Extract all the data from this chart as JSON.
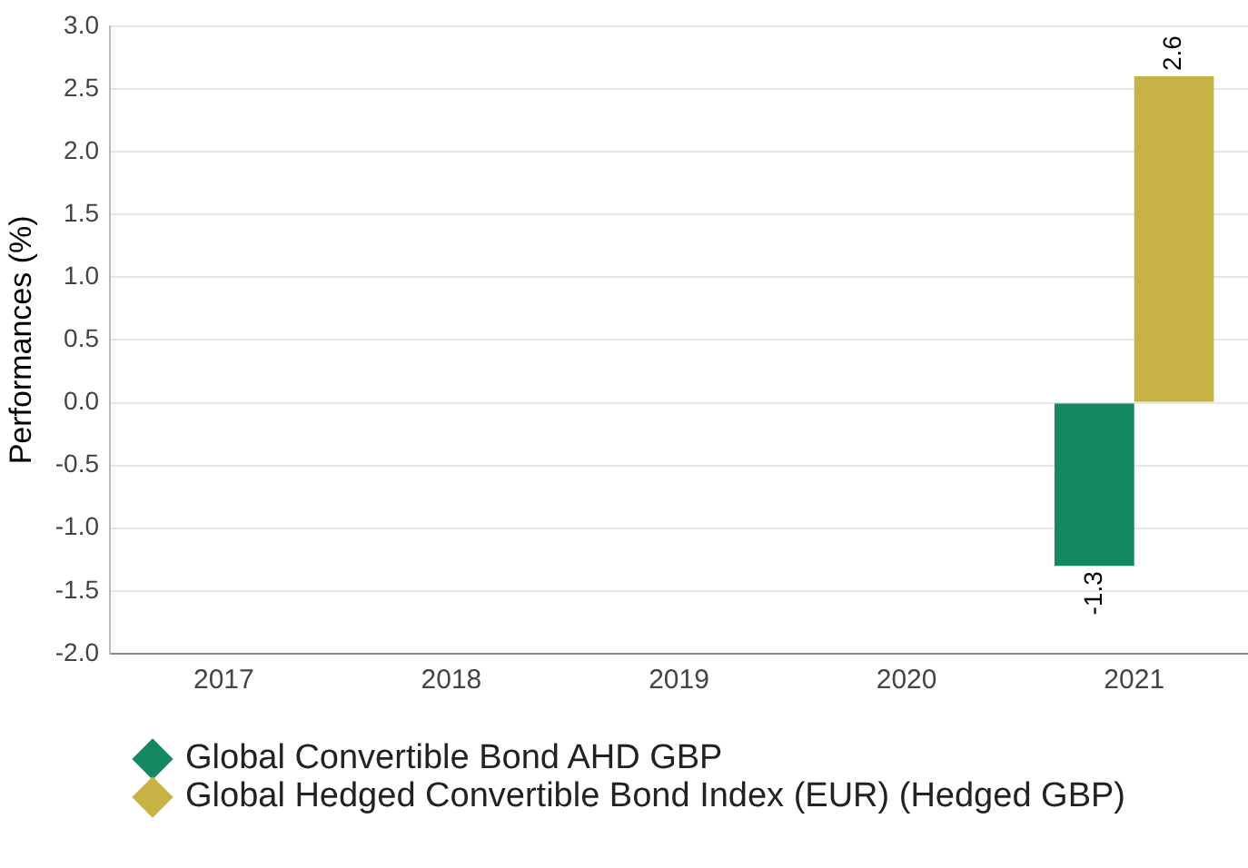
{
  "chart_data": {
    "type": "bar",
    "ylabel": "Performances (%)",
    "categories": [
      "2017",
      "2018",
      "2019",
      "2020",
      "2021"
    ],
    "series": [
      {
        "name": "Global Convertible Bond AHD GBP",
        "color": "#168763",
        "values": [
          null,
          null,
          null,
          null,
          -1.3
        ]
      },
      {
        "name": "Global Hedged Convertible Bond Index (EUR) (Hedged GBP)",
        "color": "#c7b246",
        "values": [
          null,
          null,
          null,
          null,
          2.6
        ]
      }
    ],
    "ylim": [
      -2.0,
      3.0
    ],
    "yticks": [
      {
        "value": -2,
        "label": "-2.0"
      },
      {
        "value": -1.5,
        "label": "-1.5"
      },
      {
        "value": -1,
        "label": "-1.0"
      },
      {
        "value": -0.5,
        "label": "-0.5"
      },
      {
        "value": 0,
        "label": "0.0"
      },
      {
        "value": 0.5,
        "label": "0.5"
      },
      {
        "value": 1,
        "label": "1.0"
      },
      {
        "value": 1.5,
        "label": "1.5"
      },
      {
        "value": 2,
        "label": "2.0"
      },
      {
        "value": 2.5,
        "label": "2.5"
      },
      {
        "value": 3,
        "label": "3.0"
      }
    ],
    "grid": "y",
    "legend": "bottom",
    "data_labels": true
  }
}
